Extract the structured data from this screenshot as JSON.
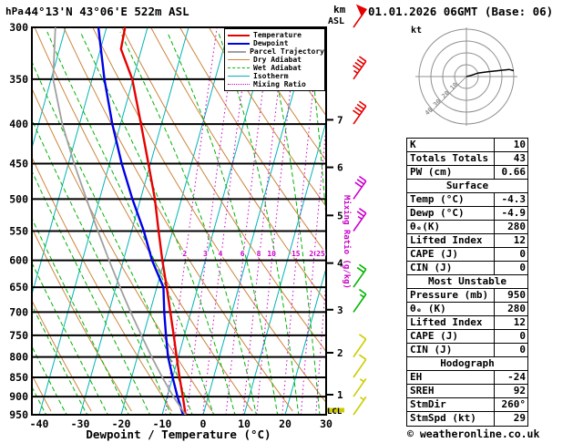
{
  "header": {
    "pressure_unit": "hPa",
    "station": "44°13'N 43°06'E 522m ASL",
    "datetime": "01.01.2026 06GMT (Base: 06)",
    "alt_unit_top": "km",
    "alt_unit_bottom": "ASL"
  },
  "axes": {
    "xlabel": "Dewpoint / Temperature (°C)",
    "temp_ticks": [
      -40,
      -30,
      -20,
      -10,
      0,
      10,
      20,
      30
    ],
    "pressure_ticks": [
      300,
      350,
      400,
      450,
      500,
      550,
      600,
      650,
      700,
      750,
      800,
      850,
      900,
      950
    ],
    "km_ticks": [
      7,
      6,
      5,
      4,
      3,
      2,
      1
    ],
    "km_tick_pressures": [
      395,
      455,
      525,
      605,
      695,
      790,
      895
    ],
    "mixing_ratio_values": [
      2,
      3,
      4,
      6,
      8,
      10,
      15,
      20,
      25
    ],
    "mixing_ratio_axis_label": "Mixing Ratio (g/kg)",
    "lcl_label": "LCL"
  },
  "legend": [
    {
      "label": "Temperature",
      "color": "#e60000",
      "style": "solid",
      "width": 2
    },
    {
      "label": "Dewpoint",
      "color": "#0000e6",
      "style": "solid",
      "width": 2
    },
    {
      "label": "Parcel Trajectory",
      "color": "#a0a0a0",
      "style": "solid",
      "width": 2
    },
    {
      "label": "Dry Adiabat",
      "color": "#cd853f",
      "style": "solid",
      "width": 1
    },
    {
      "label": "Wet Adiabat",
      "color": "#00b400",
      "style": "dashed",
      "width": 1
    },
    {
      "label": "Isotherm",
      "color": "#00b4b4",
      "style": "solid",
      "width": 1
    },
    {
      "label": "Mixing Ratio",
      "color": "#c800c8",
      "style": "dotted",
      "width": 1
    }
  ],
  "hodograph": {
    "unit": "kt",
    "rings_kt": [
      10,
      20,
      30,
      40
    ],
    "trace_u_kt": [
      0,
      4,
      10,
      18,
      27,
      36,
      40
    ],
    "trace_v_kt": [
      0,
      1,
      3,
      4,
      5,
      6,
      5
    ]
  },
  "wind_barbs": [
    {
      "pressure": 300,
      "speed_kt": 50,
      "color": "#e60000"
    },
    {
      "pressure": 350,
      "speed_kt": 45,
      "color": "#e60000"
    },
    {
      "pressure": 400,
      "speed_kt": 40,
      "color": "#e60000"
    },
    {
      "pressure": 500,
      "speed_kt": 30,
      "color": "#cc00cc"
    },
    {
      "pressure": 550,
      "speed_kt": 25,
      "color": "#cc00cc"
    },
    {
      "pressure": 650,
      "speed_kt": 20,
      "color": "#00b400"
    },
    {
      "pressure": 700,
      "speed_kt": 15,
      "color": "#00b400"
    },
    {
      "pressure": 800,
      "speed_kt": 10,
      "color": "#cccc00"
    },
    {
      "pressure": 850,
      "speed_kt": 10,
      "color": "#cccc00"
    },
    {
      "pressure": 900,
      "speed_kt": 5,
      "color": "#cccc00"
    },
    {
      "pressure": 950,
      "speed_kt": 5,
      "color": "#cccc00"
    }
  ],
  "table": {
    "indices": [
      {
        "label": "K",
        "value": "10"
      },
      {
        "label": "Totals Totals",
        "value": "43"
      },
      {
        "label": "PW (cm)",
        "value": "0.66"
      }
    ],
    "sections": [
      {
        "header": "Surface",
        "rows": [
          [
            "Temp (°C)",
            "-4.3"
          ],
          [
            "Dewp (°C)",
            "-4.9"
          ],
          [
            "θₑ(K)",
            "280"
          ],
          [
            "Lifted Index",
            "12"
          ],
          [
            "CAPE (J)",
            "0"
          ],
          [
            "CIN (J)",
            "0"
          ]
        ]
      },
      {
        "header": "Most Unstable",
        "rows": [
          [
            "Pressure (mb)",
            "950"
          ],
          [
            "θₑ (K)",
            "280"
          ],
          [
            "Lifted Index",
            "12"
          ],
          [
            "CAPE (J)",
            "0"
          ],
          [
            "CIN (J)",
            "0"
          ]
        ]
      },
      {
        "header": "Hodograph",
        "rows": [
          [
            "EH",
            "-24"
          ],
          [
            "SREH",
            "92"
          ],
          [
            "StmDir",
            "260°"
          ],
          [
            "StmSpd (kt)",
            "29"
          ]
        ]
      }
    ]
  },
  "footer": {
    "copyright": "© weatheronline.co.uk"
  },
  "chart_data": {
    "type": "line",
    "title": "Skew-T log-P sounding 44°13'N 43°06'E 522m ASL 01.01.2026 06GMT",
    "x_axis": {
      "label": "Dewpoint / Temperature (°C)",
      "range": [
        -40,
        35
      ]
    },
    "y_axis": {
      "label": "hPa",
      "scale": "log",
      "range": [
        950,
        300
      ]
    },
    "series": [
      {
        "name": "Temperature",
        "color": "#e60000",
        "pressure_hpa": [
          950,
          900,
          850,
          800,
          750,
          700,
          650,
          600,
          550,
          500,
          450,
          400,
          350,
          320,
          300
        ],
        "temperature_c": [
          -4.3,
          -6.2,
          -8.3,
          -10.4,
          -12.6,
          -15,
          -17.6,
          -20.5,
          -23.4,
          -26.5,
          -30.5,
          -35,
          -40.2,
          -45,
          -45.5
        ]
      },
      {
        "name": "Dewpoint",
        "color": "#0000e6",
        "pressure_hpa": [
          950,
          900,
          850,
          800,
          750,
          700,
          650,
          600,
          550,
          500,
          450,
          400,
          350,
          300
        ],
        "temperature_c": [
          -4.9,
          -7.5,
          -10,
          -12.5,
          -14.5,
          -16.5,
          -18.4,
          -23,
          -27,
          -32,
          -37,
          -42,
          -47,
          -52
        ]
      },
      {
        "name": "Parcel Trajectory",
        "color": "#a0a0a0",
        "pressure_hpa": [
          950,
          900,
          850,
          800,
          750,
          700,
          650,
          600,
          550,
          500,
          450,
          400,
          350,
          300
        ],
        "temperature_c": [
          -4.3,
          -8.5,
          -12.5,
          -16.5,
          -20.5,
          -24.7,
          -29,
          -33.5,
          -38.2,
          -43.2,
          -48.6,
          -54.2,
          -59.5,
          -62.5
        ]
      }
    ]
  }
}
